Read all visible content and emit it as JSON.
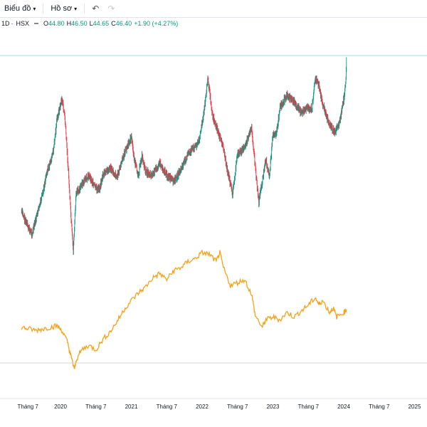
{
  "toolbar": {
    "chart_menu": "Biểu đồ",
    "profile_menu": "Hồ sơ",
    "undo_icon": "undo-icon",
    "redo_icon": "redo-icon"
  },
  "legend": {
    "interval": "1D",
    "separator": "·",
    "exchange": "HSX",
    "open_label": "O",
    "open": "44.80",
    "high_label": "H",
    "high": "46.50",
    "low_label": "L",
    "low": "44.65",
    "close_label": "C",
    "close": "46.40",
    "change": "+1.90 (+4.27%)"
  },
  "colors": {
    "up": "#089981",
    "down": "#f23645",
    "compare_line": "#f7a21b",
    "price_line": "#9fe0d6"
  },
  "chart_data": {
    "type": "line",
    "x_ticks": [
      "Tháng 7",
      "2020",
      "Tháng 7",
      "2021",
      "Tháng 7",
      "2022",
      "Tháng 7",
      "2023",
      "Tháng 7",
      "2024",
      "Tháng 7",
      "2025"
    ],
    "series": [
      {
        "values": [
          [
            2019.45,
            0.35
          ],
          [
            2019.5,
            0.3
          ],
          [
            2019.55,
            0.25
          ],
          [
            2019.6,
            0.22
          ],
          [
            2019.67,
            0.33
          ],
          [
            2019.75,
            0.45
          ],
          [
            2019.8,
            0.57
          ],
          [
            2019.85,
            0.62
          ],
          [
            2019.9,
            0.7
          ],
          [
            2019.95,
            0.88
          ],
          [
            2020.02,
            1.0
          ],
          [
            2020.06,
            0.9
          ],
          [
            2020.1,
            0.66
          ],
          [
            2020.15,
            0.3
          ],
          [
            2020.18,
            0.12
          ],
          [
            2020.22,
            0.45
          ],
          [
            2020.3,
            0.5
          ],
          [
            2020.4,
            0.56
          ],
          [
            2020.5,
            0.48
          ],
          [
            2020.55,
            0.48
          ],
          [
            2020.6,
            0.56
          ],
          [
            2020.7,
            0.6
          ],
          [
            2020.8,
            0.55
          ],
          [
            2020.9,
            0.68
          ],
          [
            2021.0,
            0.78
          ],
          [
            2021.05,
            0.63
          ],
          [
            2021.1,
            0.56
          ],
          [
            2021.15,
            0.67
          ],
          [
            2021.2,
            0.58
          ],
          [
            2021.3,
            0.56
          ],
          [
            2021.4,
            0.63
          ],
          [
            2021.5,
            0.56
          ],
          [
            2021.6,
            0.52
          ],
          [
            2021.7,
            0.59
          ],
          [
            2021.8,
            0.68
          ],
          [
            2021.95,
            0.75
          ],
          [
            2022.02,
            0.9
          ],
          [
            2022.08,
            1.12
          ],
          [
            2022.15,
            0.9
          ],
          [
            2022.25,
            0.78
          ],
          [
            2022.3,
            0.72
          ],
          [
            2022.35,
            0.6
          ],
          [
            2022.43,
            0.45
          ],
          [
            2022.5,
            0.68
          ],
          [
            2022.6,
            0.72
          ],
          [
            2022.7,
            0.83
          ],
          [
            2022.76,
            0.56
          ],
          [
            2022.8,
            0.4
          ],
          [
            2022.9,
            0.65
          ],
          [
            2022.95,
            0.55
          ],
          [
            2023.0,
            0.8
          ],
          [
            2023.05,
            0.8
          ],
          [
            2023.1,
            0.95
          ],
          [
            2023.2,
            1.02
          ],
          [
            2023.3,
            0.98
          ],
          [
            2023.4,
            0.92
          ],
          [
            2023.5,
            0.95
          ],
          [
            2023.55,
            0.94
          ],
          [
            2023.6,
            1.12
          ],
          [
            2023.65,
            1.08
          ],
          [
            2023.7,
            0.97
          ],
          [
            2023.8,
            0.85
          ],
          [
            2023.88,
            0.8
          ],
          [
            2023.95,
            0.88
          ],
          [
            2024.0,
            1.0
          ],
          [
            2024.03,
            1.1
          ],
          [
            2024.04,
            1.25
          ]
        ]
      },
      {
        "values": [
          [
            2019.45,
            0.2
          ],
          [
            2019.55,
            0.19
          ],
          [
            2019.65,
            0.18
          ],
          [
            2019.75,
            0.19
          ],
          [
            2019.85,
            0.2
          ],
          [
            2019.95,
            0.21
          ],
          [
            2020.02,
            0.18
          ],
          [
            2020.1,
            0.1
          ],
          [
            2020.15,
            0.0
          ],
          [
            2020.2,
            -0.08
          ],
          [
            2020.22,
            -0.02
          ],
          [
            2020.3,
            0.05
          ],
          [
            2020.4,
            0.08
          ],
          [
            2020.5,
            0.05
          ],
          [
            2020.6,
            0.12
          ],
          [
            2020.7,
            0.17
          ],
          [
            2020.8,
            0.24
          ],
          [
            2020.9,
            0.32
          ],
          [
            2021.0,
            0.38
          ],
          [
            2021.1,
            0.43
          ],
          [
            2021.2,
            0.47
          ],
          [
            2021.3,
            0.53
          ],
          [
            2021.4,
            0.56
          ],
          [
            2021.5,
            0.52
          ],
          [
            2021.6,
            0.58
          ],
          [
            2021.7,
            0.6
          ],
          [
            2021.8,
            0.64
          ],
          [
            2021.9,
            0.66
          ],
          [
            2022.0,
            0.7
          ],
          [
            2022.1,
            0.69
          ],
          [
            2022.2,
            0.64
          ],
          [
            2022.25,
            0.7
          ],
          [
            2022.3,
            0.6
          ],
          [
            2022.4,
            0.48
          ],
          [
            2022.5,
            0.5
          ],
          [
            2022.6,
            0.52
          ],
          [
            2022.7,
            0.42
          ],
          [
            2022.75,
            0.28
          ],
          [
            2022.85,
            0.2
          ],
          [
            2022.9,
            0.25
          ],
          [
            2023.0,
            0.27
          ],
          [
            2023.1,
            0.25
          ],
          [
            2023.2,
            0.3
          ],
          [
            2023.3,
            0.27
          ],
          [
            2023.4,
            0.31
          ],
          [
            2023.5,
            0.35
          ],
          [
            2023.6,
            0.4
          ],
          [
            2023.65,
            0.35
          ],
          [
            2023.7,
            0.38
          ],
          [
            2023.8,
            0.3
          ],
          [
            2023.85,
            0.33
          ],
          [
            2023.9,
            0.27
          ],
          [
            2024.0,
            0.3
          ],
          [
            2024.04,
            0.32
          ]
        ]
      }
    ]
  }
}
